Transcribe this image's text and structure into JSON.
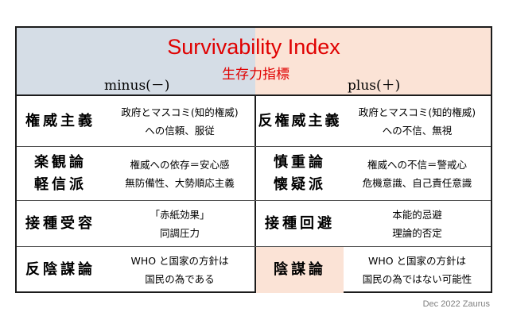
{
  "header": {
    "title": "Survivability Index",
    "subtitle": "生存力指標",
    "left_label": "minus(－)",
    "right_label": "plus(＋)"
  },
  "rows": [
    {
      "left_category": "権威主義",
      "left_desc": [
        "政府とマスコミ(知的権威)",
        "への信頼、服従"
      ],
      "right_category": "反権威主義",
      "right_desc": [
        "政府とマスコミ(知的権威)",
        "への不信、無視"
      ]
    },
    {
      "left_category": [
        "楽観論",
        "軽信派"
      ],
      "left_desc": [
        "権威への依存＝安心感",
        "無防備性、大勢順応主義"
      ],
      "right_category": [
        "慎重論",
        "懐疑派"
      ],
      "right_desc": [
        "権威への不信＝警戒心",
        "危機意識、自己責任意識"
      ]
    },
    {
      "left_category": "接種受容",
      "left_desc": [
        "「赤紙効果」",
        "同調圧力"
      ],
      "right_category": "接種回避",
      "right_desc": [
        "本能的忌避",
        "理論的否定"
      ]
    },
    {
      "left_category": "反陰謀論",
      "left_desc": [
        "WHO と国家の方針は",
        "国民の為である"
      ],
      "right_category": "陰謀論",
      "right_desc": [
        "WHO と国家の方針は",
        "国民の為ではない可能性"
      ]
    }
  ],
  "footer": "Dec 2022 Zaurus",
  "colors": {
    "title": "#e00000",
    "left_header_bg": "#d5dde6",
    "right_header_bg": "#fbe3d6"
  }
}
